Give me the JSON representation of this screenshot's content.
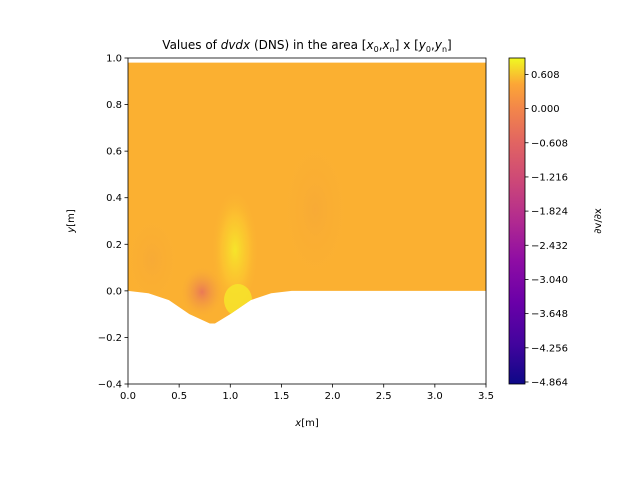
{
  "chart_data": {
    "type": "heatmap",
    "title": "Values of dvdx (DNS) in the area [x0,xn] x [y0,yn]",
    "title_parts": {
      "prefix": "Values of ",
      "var": "dvdx",
      "middle": " (DNS) in the area [",
      "x0": "x",
      "x0_sub": "0",
      "comma1": ",",
      "xn": "x",
      "xn_sub": "n",
      "mid2": "] x [",
      "y0": "y",
      "y0_sub": "0",
      "comma2": ",",
      "yn": "y",
      "yn_sub": "n",
      "suffix": "]"
    },
    "xlabel": {
      "var": "x",
      "unit": "[m]"
    },
    "ylabel": {
      "var": "y",
      "unit": "[m]"
    },
    "xlim": [
      0.0,
      3.5
    ],
    "ylim": [
      -0.4,
      1.0
    ],
    "x_ticks": [
      0.0,
      0.5,
      1.0,
      1.5,
      2.0,
      2.5,
      3.0,
      3.5
    ],
    "x_tick_labels": [
      "0.0",
      "0.5",
      "1.0",
      "1.5",
      "2.0",
      "2.5",
      "3.0",
      "3.5"
    ],
    "y_ticks": [
      -0.4,
      -0.2,
      0.0,
      0.2,
      0.4,
      0.6,
      0.8,
      1.0
    ],
    "y_tick_labels": [
      "−0.4",
      "−0.2",
      "0.0",
      "0.2",
      "0.4",
      "0.6",
      "0.8",
      "1.0"
    ],
    "domain_top": 0.98,
    "domain_bottom": {
      "description_points_x": [
        0.0,
        0.2,
        0.4,
        0.6,
        0.8,
        0.85,
        1.0,
        1.2,
        1.4,
        1.6,
        3.5
      ],
      "description_points_y": [
        0.0,
        -0.01,
        -0.04,
        -0.1,
        -0.14,
        -0.14,
        -0.1,
        -0.04,
        -0.01,
        0.0,
        0.0
      ]
    },
    "colormap": "plasma",
    "colorbar": {
      "label": "∂v/∂x",
      "range": [
        -4.9,
        0.9
      ],
      "ticks": [
        0.608,
        0.0,
        -0.608,
        -1.216,
        -1.824,
        -2.432,
        -3.04,
        -3.648,
        -4.256,
        -4.864
      ],
      "tick_labels": [
        "0.608",
        "0.000",
        "−0.608",
        "−1.216",
        "−1.824",
        "−2.432",
        "−3.040",
        "−3.648",
        "−4.256",
        "−4.864"
      ]
    },
    "field_background_value": 0.0,
    "colors": {
      "background_field": "#fbb031",
      "hill_bright": "#f5e627",
      "hill_dark": "#d1497b",
      "axes": "#000000"
    }
  }
}
